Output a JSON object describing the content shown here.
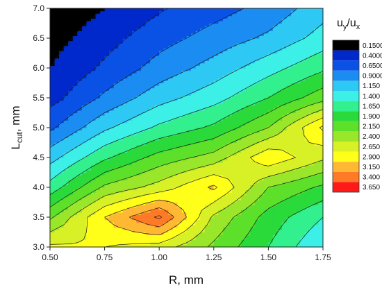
{
  "chart_data": {
    "type": "contour",
    "title": "",
    "xlabel": "R, mm",
    "ylabel_main": "L",
    "ylabel_sub": "cut",
    "ylabel_suffix": ", mm",
    "xlim": [
      0.5,
      1.75
    ],
    "ylim": [
      3.0,
      7.0
    ],
    "x_ticks": [
      "0.50",
      "0.75",
      "1.00",
      "1.25",
      "1.50",
      "1.75"
    ],
    "y_ticks": [
      "3.0",
      "3.5",
      "4.0",
      "4.5",
      "5.0",
      "5.5",
      "6.0",
      "6.5",
      "7.0"
    ],
    "x": [
      0.5,
      0.75,
      1.0,
      1.25,
      1.5,
      1.75
    ],
    "y": [
      3.0,
      3.5,
      4.0,
      4.5,
      5.0,
      5.5,
      6.0,
      6.5,
      7.0
    ],
    "z": [
      [
        2.95,
        2.9,
        2.78,
        2.35,
        1.9,
        1.4
      ],
      [
        2.35,
        3.15,
        3.7,
        2.6,
        2.05,
        1.65
      ],
      [
        1.75,
        2.45,
        2.75,
        3.2,
        2.4,
        2.1
      ],
      [
        1.3,
        1.85,
        2.25,
        2.5,
        3.1,
        2.7
      ],
      [
        0.85,
        1.35,
        1.7,
        1.95,
        2.4,
        3.2
      ],
      [
        0.55,
        0.95,
        1.3,
        1.55,
        1.9,
        2.3
      ],
      [
        0.4,
        0.7,
        1.0,
        1.25,
        1.55,
        1.85
      ],
      [
        0.3,
        0.55,
        0.8,
        1.0,
        1.2,
        1.5
      ],
      [
        0.2,
        0.4,
        0.62,
        0.8,
        0.98,
        1.3
      ]
    ],
    "legend": {
      "title_main": "u",
      "title_sub1": "y",
      "title_slash": "/u",
      "title_sub2": "x",
      "levels": [
        "0.1500",
        "0.4000",
        "0.6500",
        "0.9000",
        "1.150",
        "1.400",
        "1.650",
        "1.900",
        "2.150",
        "2.400",
        "2.650",
        "2.900",
        "3.150",
        "3.400",
        "3.650"
      ],
      "level_values": [
        0.15,
        0.4,
        0.65,
        0.9,
        1.15,
        1.4,
        1.65,
        1.9,
        2.15,
        2.4,
        2.65,
        2.9,
        3.15,
        3.4,
        3.65
      ],
      "colors": [
        "#000000",
        "#0029cc",
        "#0a52e6",
        "#1a8cf2",
        "#2ec8f5",
        "#3cf0e8",
        "#33f08e",
        "#2ad93a",
        "#5ce02a",
        "#9ae62a",
        "#d8f026",
        "#ffff19",
        "#ffb833",
        "#ff7a26",
        "#ff1a1a"
      ],
      "placement": "right"
    }
  }
}
